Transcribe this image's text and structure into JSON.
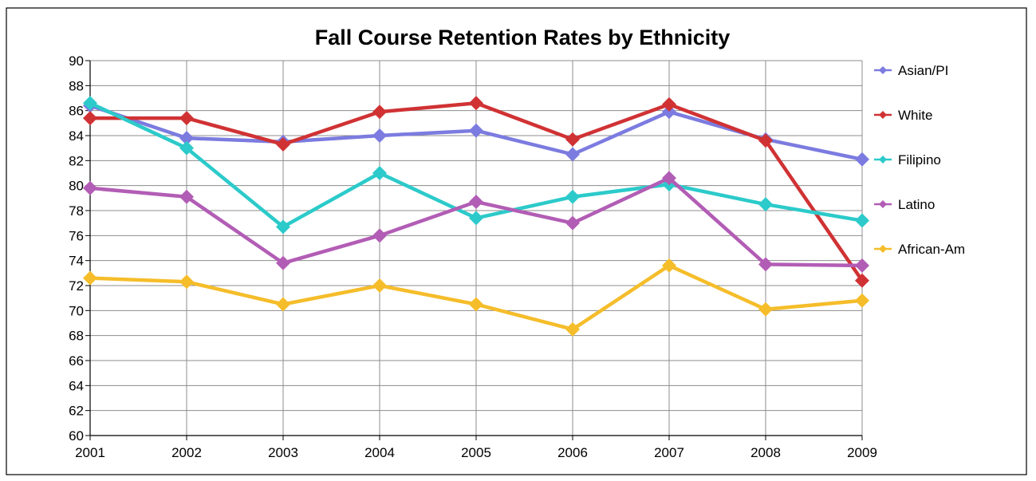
{
  "chart_data": {
    "type": "line",
    "title": "Fall Course Retention Rates by Ethnicity",
    "xlabel": "",
    "ylabel": "",
    "categories": [
      "2001",
      "2002",
      "2003",
      "2004",
      "2005",
      "2006",
      "2007",
      "2008",
      "2009"
    ],
    "ylim": [
      60,
      90
    ],
    "ytick_step": 2,
    "grid": true,
    "legend_position": "right",
    "series": [
      {
        "name": "Asian/PI",
        "color": "#7b7be0",
        "values": [
          86.4,
          83.8,
          83.5,
          84.0,
          84.4,
          82.5,
          85.9,
          83.7,
          82.1
        ]
      },
      {
        "name": "White",
        "color": "#d03234",
        "values": [
          85.4,
          85.4,
          83.3,
          85.9,
          86.6,
          83.7,
          86.5,
          83.6,
          72.4
        ]
      },
      {
        "name": "Filipino",
        "color": "#2ccaca",
        "values": [
          86.6,
          83.0,
          76.7,
          81.0,
          77.4,
          79.1,
          80.1,
          78.5,
          77.2
        ]
      },
      {
        "name": "Latino",
        "color": "#b25db5",
        "values": [
          79.8,
          79.1,
          73.8,
          76.0,
          78.7,
          77.0,
          80.6,
          73.7,
          73.6
        ]
      },
      {
        "name": "African-Am",
        "color": "#f5bd2a",
        "values": [
          72.6,
          72.3,
          70.5,
          72.0,
          70.5,
          68.5,
          73.6,
          70.1,
          70.8
        ]
      }
    ]
  }
}
